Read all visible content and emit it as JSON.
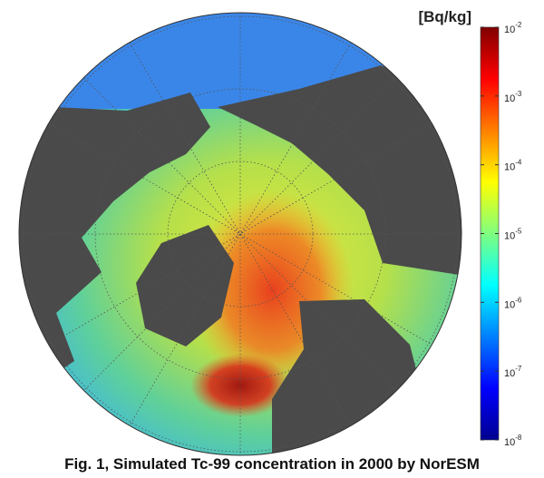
{
  "colorbar": {
    "title": "[Bq/kg]",
    "scale": "log",
    "range": [
      1e-08,
      0.01
    ],
    "ticks": [
      {
        "value": 0.01,
        "label": "10",
        "exponent": "-2"
      },
      {
        "value": 0.001,
        "label": "10",
        "exponent": "-3"
      },
      {
        "value": 0.0001,
        "label": "10",
        "exponent": "-4"
      },
      {
        "value": 1e-05,
        "label": "10",
        "exponent": "-5"
      },
      {
        "value": 1e-06,
        "label": "10",
        "exponent": "-6"
      },
      {
        "value": 1e-07,
        "label": "10",
        "exponent": "-7"
      },
      {
        "value": 1e-08,
        "label": "10",
        "exponent": "-8"
      }
    ]
  },
  "caption": "Fig. 1, Simulated Tc-99 concentration in 2000 by NorESM"
}
